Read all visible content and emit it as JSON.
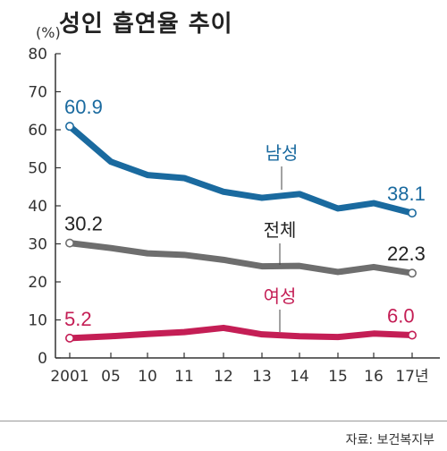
{
  "chart_data": {
    "type": "line",
    "title": "성인 흡연율 추이",
    "unit_label": "(%)",
    "categories": [
      "2001",
      "05",
      "10",
      "11",
      "12",
      "13",
      "14",
      "15",
      "16",
      "17년"
    ],
    "ylim": [
      0,
      80
    ],
    "yticks": [
      "0",
      "10",
      "20",
      "30",
      "40",
      "50",
      "60",
      "70",
      "80"
    ],
    "series": [
      {
        "name": "남성",
        "color": "#1a6a9f",
        "values": [
          60.9,
          51.6,
          48.1,
          47.3,
          43.7,
          42.1,
          43.1,
          39.3,
          40.7,
          38.1
        ],
        "start_label": "60.9",
        "end_label": "38.1"
      },
      {
        "name": "전체",
        "color": "#6e6e6e",
        "values": [
          30.2,
          28.9,
          27.5,
          27.1,
          25.8,
          24.1,
          24.2,
          22.6,
          23.9,
          22.3
        ],
        "start_label": "30.2",
        "end_label": "22.3"
      },
      {
        "name": "여성",
        "color": "#c41e55",
        "values": [
          5.2,
          5.7,
          6.3,
          6.8,
          7.9,
          6.2,
          5.7,
          5.5,
          6.4,
          6.0
        ],
        "start_label": "5.2",
        "end_label": "6.0"
      }
    ],
    "grid": false,
    "source": "자료: 보건복지부"
  }
}
